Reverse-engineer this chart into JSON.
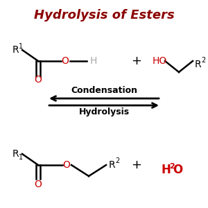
{
  "bg_color": "#ffffff",
  "black": "#000000",
  "red": "#cc0000",
  "dark_red": "#8b0000",
  "title": "Hydrolysis of Esters",
  "title_fontsize": 13,
  "arrow_label_top": "Hydrolysis",
  "arrow_label_bottom": "Condensation"
}
